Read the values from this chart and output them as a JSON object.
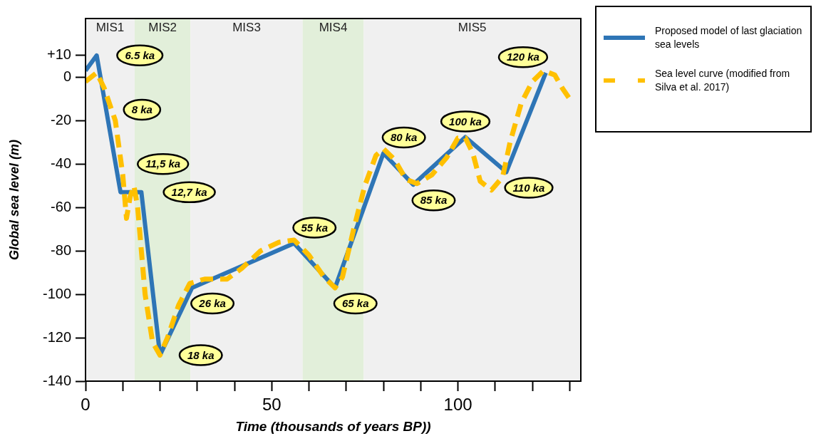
{
  "chart_data": {
    "type": "line",
    "xlabel": "Time (thousands of years BP))",
    "ylabel": "Global sea level (m)",
    "xlim": [
      0,
      133
    ],
    "xticks": [
      0,
      {
        "value": 10,
        "label": null
      },
      {
        "value": 20,
        "label": null
      },
      {
        "value": 30,
        "label": null
      },
      {
        "value": 40,
        "label": null
      },
      50,
      {
        "value": 60,
        "label": null
      },
      {
        "value": 70,
        "label": null
      },
      {
        "value": 80,
        "label": null
      },
      {
        "value": 90,
        "label": null
      },
      100,
      {
        "value": 110,
        "label": null
      },
      {
        "value": 120,
        "label": null
      },
      {
        "value": 130,
        "label": null
      }
    ],
    "ylim": [
      -140,
      27
    ],
    "yticks": [
      -140,
      -120,
      -100,
      -80,
      -60,
      -40,
      -20,
      0,
      {
        "value": 10,
        "label": "+10"
      }
    ],
    "grid": false,
    "legend": "right",
    "marker": "none",
    "series": [
      {
        "name": "Proposed model of last glaciation sea levels",
        "color": "#2e75b6",
        "line_style": "solid",
        "x": [
          0,
          3,
          9.4,
          15,
          20,
          28.6,
          56,
          67,
          80,
          88,
          102,
          113,
          123.6
        ],
        "values": [
          3,
          10,
          -53,
          -53,
          -128,
          -97,
          -76.5,
          -97,
          -35,
          -49.5,
          -27.6,
          -43.7,
          2
        ]
      },
      {
        "name": "Sea level curve (modified from Silva et al. 2017)",
        "color": "#ffc000",
        "line_style": "dashed",
        "x": [
          0,
          3,
          5,
          8,
          10,
          11,
          12,
          13,
          14,
          16,
          18,
          20,
          22,
          25,
          28,
          32,
          38,
          42,
          47,
          52,
          56,
          60,
          64,
          67,
          69,
          72,
          75,
          78,
          80,
          83,
          86,
          89,
          93,
          97,
          100,
          102,
          104,
          106,
          109,
          112,
          114,
          117,
          120,
          123,
          126,
          128,
          130
        ],
        "values": [
          -2,
          2,
          -5,
          -20,
          -45,
          -65,
          -55,
          -50,
          -60,
          -100,
          -122,
          -128,
          -120,
          -105,
          -95,
          -93,
          -93,
          -88,
          -80,
          -76,
          -75,
          -82,
          -92,
          -97,
          -92,
          -70,
          -50,
          -36,
          -33,
          -38,
          -47,
          -49,
          -45,
          -37,
          -28,
          -28,
          -35,
          -48,
          -52,
          -46,
          -30,
          -12,
          -2,
          3,
          1,
          -5,
          -10
        ]
      }
    ],
    "bands": [
      {
        "axis": "x",
        "from": 0,
        "to": 13.2,
        "label": "MIS1",
        "color": "#f0f0f0"
      },
      {
        "axis": "x",
        "from": 13.2,
        "to": 28.2,
        "label": "MIS2",
        "color": "#e2efda"
      },
      {
        "axis": "x",
        "from": 28.2,
        "to": 58.3,
        "label": "MIS3",
        "color": "#f0f0f0"
      },
      {
        "axis": "x",
        "from": 58.3,
        "to": 74.7,
        "label": "MIS4",
        "color": "#e2efda"
      },
      {
        "axis": "x",
        "from": 74.7,
        "to": 133,
        "label": "MIS5",
        "color": "#f0f0f0"
      }
    ],
    "annotations": [
      {
        "text": "6.5 ka",
        "x": 3,
        "y": 10
      },
      {
        "text": "8 ka",
        "x": 5.5,
        "y": -15
      },
      {
        "text": "11,5 ka",
        "x": 8.1,
        "y": -40
      },
      {
        "text": "12,7 ka",
        "x": 15,
        "y": -53
      },
      {
        "text": "18 ka",
        "x": 20,
        "y": -128
      },
      {
        "text": "26 ka",
        "x": 28.6,
        "y": -97
      },
      {
        "text": "55 ka",
        "x": 56,
        "y": -76.5
      },
      {
        "text": "65 ka",
        "x": 67,
        "y": -97
      },
      {
        "text": "80 ka",
        "x": 80,
        "y": -35
      },
      {
        "text": "85 ka",
        "x": 88,
        "y": -49.5
      },
      {
        "text": "100 ka",
        "x": 102,
        "y": -27.6
      },
      {
        "text": "110 ka",
        "x": 113,
        "y": -43.7
      },
      {
        "text": "120 ka",
        "x": 123.6,
        "y": 2
      }
    ]
  }
}
